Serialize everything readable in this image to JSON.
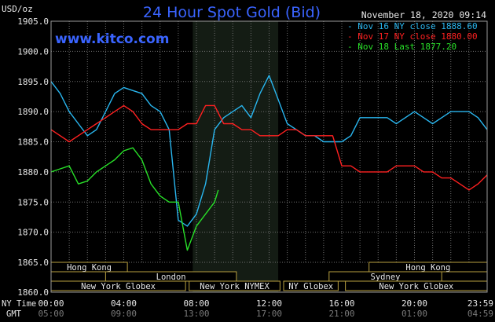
{
  "chart_data": {
    "type": "line",
    "title": "24 Hour Spot Gold (Bid)",
    "unit_label": "USD/oz",
    "date_stamp": "November 18, 2020 09:14",
    "watermark": "www.kitco.com",
    "ylim": [
      1860,
      1905
    ],
    "y_ticks": [
      "1905.0",
      "1900.0",
      "1895.0",
      "1890.0",
      "1885.0",
      "1880.0",
      "1875.0",
      "1870.0",
      "1865.0",
      "1860.0"
    ],
    "x_axis_label_ny": "NY Time",
    "x_axis_label_gmt": "GMT",
    "x_ticks_ny": [
      "00:00",
      "04:00",
      "08:00",
      "12:00",
      "16:00",
      "20:00",
      "23:59"
    ],
    "x_ticks_gmt": [
      "05:00",
      "09:00",
      "13:00",
      "17:00",
      "21:00",
      "01:00",
      "04:59"
    ],
    "legend_placement": "top-right",
    "series": [
      {
        "name": "Nov 16 NY close 1888.60",
        "color": "#29b6ef",
        "x": [
          0,
          0.5,
          1,
          1.5,
          2,
          2.5,
          3,
          3.5,
          4,
          4.5,
          5,
          5.5,
          6,
          6.5,
          7,
          7.5,
          8,
          8.5,
          9,
          9.5,
          10,
          10.5,
          11,
          11.5,
          12,
          12.5,
          13,
          13.5,
          14,
          14.5,
          15,
          15.5,
          16,
          16.5,
          17,
          17.5,
          18,
          18.5,
          19,
          19.5,
          20,
          20.5,
          21,
          21.5,
          22,
          22.5,
          23,
          23.5,
          24
        ],
        "y": [
          1895,
          1893,
          1890,
          1888,
          1886,
          1887,
          1890,
          1893,
          1894,
          1893.5,
          1893,
          1891,
          1890,
          1887,
          1872,
          1871,
          1873,
          1878,
          1887,
          1889,
          1890,
          1891,
          1889,
          1893,
          1896,
          1892,
          1888,
          1887,
          1886,
          1886,
          1885,
          1885,
          1885,
          1886,
          1889,
          1889,
          1889,
          1889,
          1888,
          1889,
          1890,
          1889,
          1888,
          1889,
          1890,
          1890,
          1890,
          1889,
          1887
        ]
      },
      {
        "name": "Nov 17 NY close 1880.00",
        "color": "#ff2020",
        "x": [
          0,
          0.5,
          1,
          1.5,
          2,
          2.5,
          3,
          3.5,
          4,
          4.5,
          5,
          5.5,
          6,
          6.5,
          7,
          7.5,
          8,
          8.5,
          9,
          9.5,
          10,
          10.5,
          11,
          11.5,
          12,
          12.5,
          13,
          13.5,
          14,
          14.5,
          15,
          15.5,
          16,
          16.5,
          17,
          17.5,
          18,
          18.5,
          19,
          19.5,
          20,
          20.5,
          21,
          21.5,
          22,
          22.5,
          23,
          23.5,
          24
        ],
        "y": [
          1887,
          1886,
          1885,
          1886,
          1887,
          1888,
          1889,
          1890,
          1891,
          1890,
          1888,
          1887,
          1887,
          1887,
          1887,
          1888,
          1888,
          1891,
          1891,
          1888,
          1888,
          1887,
          1887,
          1886,
          1886,
          1886,
          1887,
          1887,
          1886,
          1886,
          1886,
          1886,
          1881,
          1881,
          1880,
          1880,
          1880,
          1880,
          1881,
          1881,
          1881,
          1880,
          1880,
          1879,
          1879,
          1878,
          1877,
          1878,
          1879.5
        ]
      },
      {
        "name": "Nov 18 Last 1877.20",
        "color": "#28e028",
        "x": [
          0,
          0.5,
          1,
          1.5,
          2,
          2.5,
          3,
          3.5,
          4,
          4.5,
          5,
          5.5,
          6,
          6.5,
          7,
          7.5,
          8,
          8.5,
          9,
          9.2
        ],
        "y": [
          1880,
          1880.5,
          1881,
          1878,
          1878.5,
          1880,
          1881,
          1882,
          1883.5,
          1884,
          1882,
          1878,
          1876,
          1875,
          1875,
          1867,
          1871,
          1873,
          1875,
          1877
        ]
      }
    ],
    "sessions": [
      {
        "label": "Hong Kong",
        "row": 0,
        "start": -2,
        "end": 4.2
      },
      {
        "label": "Hong Kong",
        "row": 0,
        "start": 17.5,
        "end": 24.3
      },
      {
        "label": "London",
        "row": 1,
        "start": 3,
        "end": 10.2
      },
      {
        "label": "Sydney",
        "row": 1,
        "start": 15.3,
        "end": 21.5
      },
      {
        "label": "New York Globex",
        "row": 2,
        "start": -2,
        "end": 7.4
      },
      {
        "label": "New York NYMEX",
        "row": 2,
        "start": 7.6,
        "end": 12.6
      },
      {
        "label": "NY Globex",
        "row": 2,
        "start": 12.8,
        "end": 15.8
      },
      {
        "label": "New York Globex",
        "row": 2,
        "start": 16.2,
        "end": 24.3
      }
    ]
  }
}
